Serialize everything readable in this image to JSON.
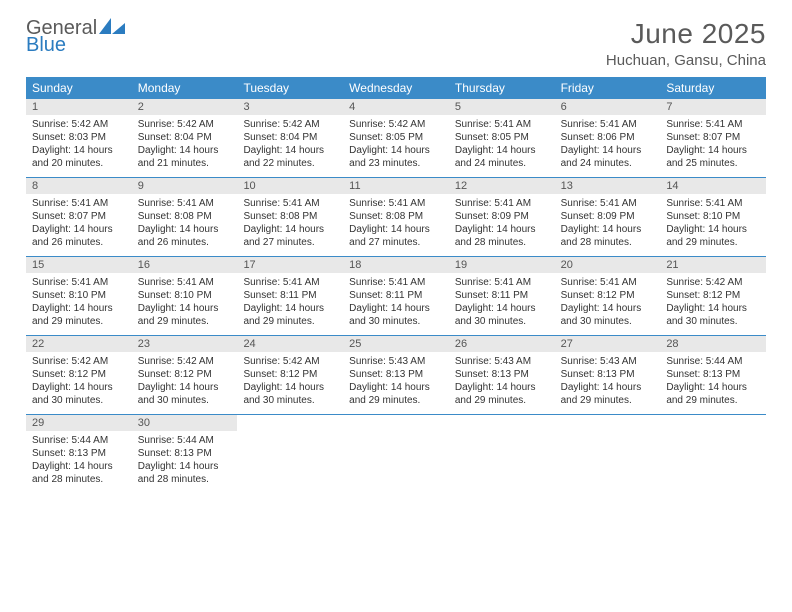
{
  "brand": {
    "part1": "General",
    "part2": "Blue"
  },
  "title": "June 2025",
  "location": "Huchuan, Gansu, China",
  "colors": {
    "header_bg": "#3b8bc8",
    "header_text": "#ffffff",
    "daynum_bg": "#e8e8e8",
    "daynum_text": "#555555",
    "body_text": "#333333",
    "title_text": "#5a5a5a",
    "brand_gray": "#5a5a5a",
    "brand_blue": "#2b7cc0",
    "rule": "#3b8bc8",
    "page_bg": "#ffffff"
  },
  "fonts": {
    "title_size_pt": 21,
    "location_size_pt": 11,
    "dayheader_size_pt": 9,
    "daynum_size_pt": 8,
    "detail_size_pt": 7.5
  },
  "day_names": [
    "Sunday",
    "Monday",
    "Tuesday",
    "Wednesday",
    "Thursday",
    "Friday",
    "Saturday"
  ],
  "weeks": [
    [
      {
        "n": "1",
        "sunrise": "5:42 AM",
        "sunset": "8:03 PM",
        "day_h": "14",
        "day_m": "20"
      },
      {
        "n": "2",
        "sunrise": "5:42 AM",
        "sunset": "8:04 PM",
        "day_h": "14",
        "day_m": "21"
      },
      {
        "n": "3",
        "sunrise": "5:42 AM",
        "sunset": "8:04 PM",
        "day_h": "14",
        "day_m": "22"
      },
      {
        "n": "4",
        "sunrise": "5:42 AM",
        "sunset": "8:05 PM",
        "day_h": "14",
        "day_m": "23"
      },
      {
        "n": "5",
        "sunrise": "5:41 AM",
        "sunset": "8:05 PM",
        "day_h": "14",
        "day_m": "24"
      },
      {
        "n": "6",
        "sunrise": "5:41 AM",
        "sunset": "8:06 PM",
        "day_h": "14",
        "day_m": "24"
      },
      {
        "n": "7",
        "sunrise": "5:41 AM",
        "sunset": "8:07 PM",
        "day_h": "14",
        "day_m": "25"
      }
    ],
    [
      {
        "n": "8",
        "sunrise": "5:41 AM",
        "sunset": "8:07 PM",
        "day_h": "14",
        "day_m": "26"
      },
      {
        "n": "9",
        "sunrise": "5:41 AM",
        "sunset": "8:08 PM",
        "day_h": "14",
        "day_m": "26"
      },
      {
        "n": "10",
        "sunrise": "5:41 AM",
        "sunset": "8:08 PM",
        "day_h": "14",
        "day_m": "27"
      },
      {
        "n": "11",
        "sunrise": "5:41 AM",
        "sunset": "8:08 PM",
        "day_h": "14",
        "day_m": "27"
      },
      {
        "n": "12",
        "sunrise": "5:41 AM",
        "sunset": "8:09 PM",
        "day_h": "14",
        "day_m": "28"
      },
      {
        "n": "13",
        "sunrise": "5:41 AM",
        "sunset": "8:09 PM",
        "day_h": "14",
        "day_m": "28"
      },
      {
        "n": "14",
        "sunrise": "5:41 AM",
        "sunset": "8:10 PM",
        "day_h": "14",
        "day_m": "29"
      }
    ],
    [
      {
        "n": "15",
        "sunrise": "5:41 AM",
        "sunset": "8:10 PM",
        "day_h": "14",
        "day_m": "29"
      },
      {
        "n": "16",
        "sunrise": "5:41 AM",
        "sunset": "8:10 PM",
        "day_h": "14",
        "day_m": "29"
      },
      {
        "n": "17",
        "sunrise": "5:41 AM",
        "sunset": "8:11 PM",
        "day_h": "14",
        "day_m": "29"
      },
      {
        "n": "18",
        "sunrise": "5:41 AM",
        "sunset": "8:11 PM",
        "day_h": "14",
        "day_m": "30"
      },
      {
        "n": "19",
        "sunrise": "5:41 AM",
        "sunset": "8:11 PM",
        "day_h": "14",
        "day_m": "30"
      },
      {
        "n": "20",
        "sunrise": "5:41 AM",
        "sunset": "8:12 PM",
        "day_h": "14",
        "day_m": "30"
      },
      {
        "n": "21",
        "sunrise": "5:42 AM",
        "sunset": "8:12 PM",
        "day_h": "14",
        "day_m": "30"
      }
    ],
    [
      {
        "n": "22",
        "sunrise": "5:42 AM",
        "sunset": "8:12 PM",
        "day_h": "14",
        "day_m": "30"
      },
      {
        "n": "23",
        "sunrise": "5:42 AM",
        "sunset": "8:12 PM",
        "day_h": "14",
        "day_m": "30"
      },
      {
        "n": "24",
        "sunrise": "5:42 AM",
        "sunset": "8:12 PM",
        "day_h": "14",
        "day_m": "30"
      },
      {
        "n": "25",
        "sunrise": "5:43 AM",
        "sunset": "8:13 PM",
        "day_h": "14",
        "day_m": "29"
      },
      {
        "n": "26",
        "sunrise": "5:43 AM",
        "sunset": "8:13 PM",
        "day_h": "14",
        "day_m": "29"
      },
      {
        "n": "27",
        "sunrise": "5:43 AM",
        "sunset": "8:13 PM",
        "day_h": "14",
        "day_m": "29"
      },
      {
        "n": "28",
        "sunrise": "5:44 AM",
        "sunset": "8:13 PM",
        "day_h": "14",
        "day_m": "29"
      }
    ],
    [
      {
        "n": "29",
        "sunrise": "5:44 AM",
        "sunset": "8:13 PM",
        "day_h": "14",
        "day_m": "28"
      },
      {
        "n": "30",
        "sunrise": "5:44 AM",
        "sunset": "8:13 PM",
        "day_h": "14",
        "day_m": "28"
      },
      null,
      null,
      null,
      null,
      null
    ]
  ],
  "labels": {
    "sunrise": "Sunrise:",
    "sunset": "Sunset:",
    "daylight": "Daylight:",
    "hours": "hours",
    "and": "and",
    "minutes": "minutes."
  }
}
